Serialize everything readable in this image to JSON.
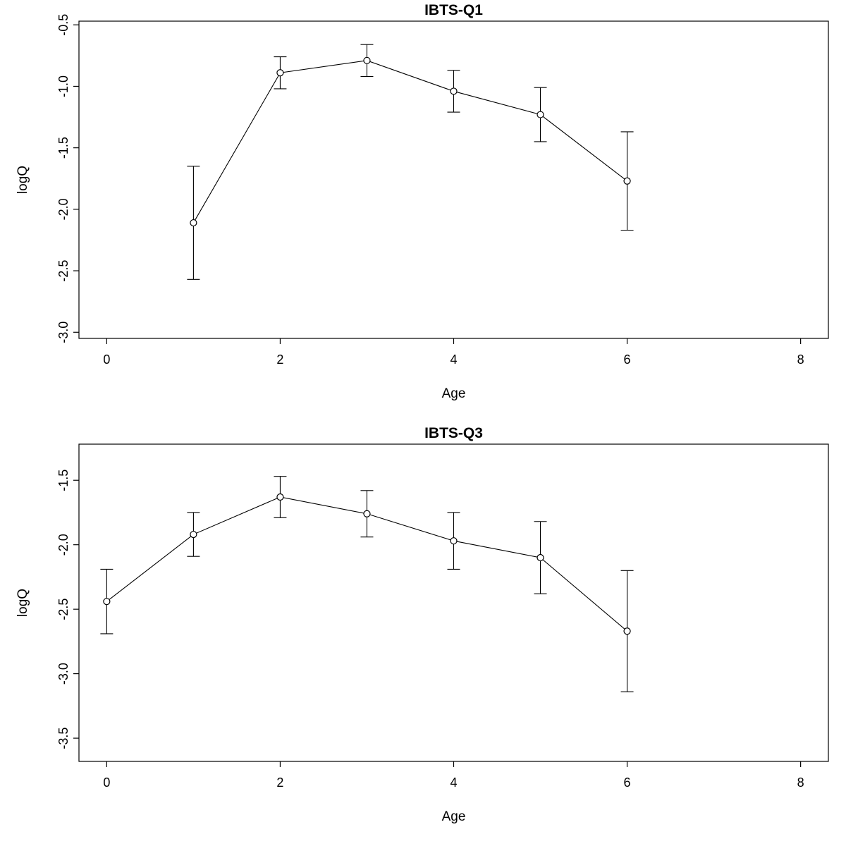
{
  "page": {
    "background": "#ffffff"
  },
  "chart_data": [
    {
      "type": "line",
      "title": "IBTS-Q1",
      "xlabel": "Age",
      "ylabel": "logQ",
      "x": [
        1,
        2,
        3,
        4,
        5,
        6
      ],
      "y": [
        -2.11,
        -0.89,
        -0.79,
        -1.04,
        -1.23,
        -1.77
      ],
      "y_lower": [
        -2.57,
        -1.02,
        -0.92,
        -1.21,
        -1.45,
        -2.17
      ],
      "y_upper": [
        -1.65,
        -0.76,
        -0.66,
        -0.87,
        -1.01,
        -1.37
      ],
      "xlim": [
        -0.32,
        8.32
      ],
      "ylim": [
        -3.05,
        -0.47
      ],
      "xticks": [
        0,
        2,
        4,
        6,
        8
      ],
      "xticklabels": [
        "0",
        "2",
        "4",
        "6",
        "8"
      ],
      "yticks": [
        -3.0,
        -2.5,
        -2.0,
        -1.5,
        -1.0,
        -0.5
      ],
      "yticklabels": [
        "-3.0",
        "-2.5",
        "-2.0",
        "-1.5",
        "-1.0",
        "-0.5"
      ],
      "marker": "open-circle",
      "error_bars": true,
      "grid": false,
      "legend": "none",
      "colors": {
        "line": "#000000",
        "marker": "#000000",
        "axis": "#000000",
        "text": "#000000"
      }
    },
    {
      "type": "line",
      "title": "IBTS-Q3",
      "xlabel": "Age",
      "ylabel": "logQ",
      "x": [
        0,
        1,
        2,
        3,
        4,
        5,
        6
      ],
      "y": [
        -2.44,
        -1.92,
        -1.63,
        -1.76,
        -1.97,
        -2.1,
        -2.67
      ],
      "y_lower": [
        -2.69,
        -2.09,
        -1.79,
        -1.94,
        -2.19,
        -2.38,
        -3.14
      ],
      "y_upper": [
        -2.19,
        -1.75,
        -1.47,
        -1.58,
        -1.75,
        -1.82,
        -2.2
      ],
      "xlim": [
        -0.32,
        8.32
      ],
      "ylim": [
        -3.68,
        -1.22
      ],
      "xticks": [
        0,
        2,
        4,
        6,
        8
      ],
      "xticklabels": [
        "0",
        "2",
        "4",
        "6",
        "8"
      ],
      "yticks": [
        -3.5,
        -3.0,
        -2.5,
        -2.0,
        -1.5
      ],
      "yticklabels": [
        "-3.5",
        "-3.0",
        "-2.5",
        "-2.0",
        "-1.5"
      ],
      "marker": "open-circle",
      "error_bars": true,
      "grid": false,
      "legend": "none",
      "colors": {
        "line": "#000000",
        "marker": "#000000",
        "axis": "#000000",
        "text": "#000000"
      }
    }
  ]
}
